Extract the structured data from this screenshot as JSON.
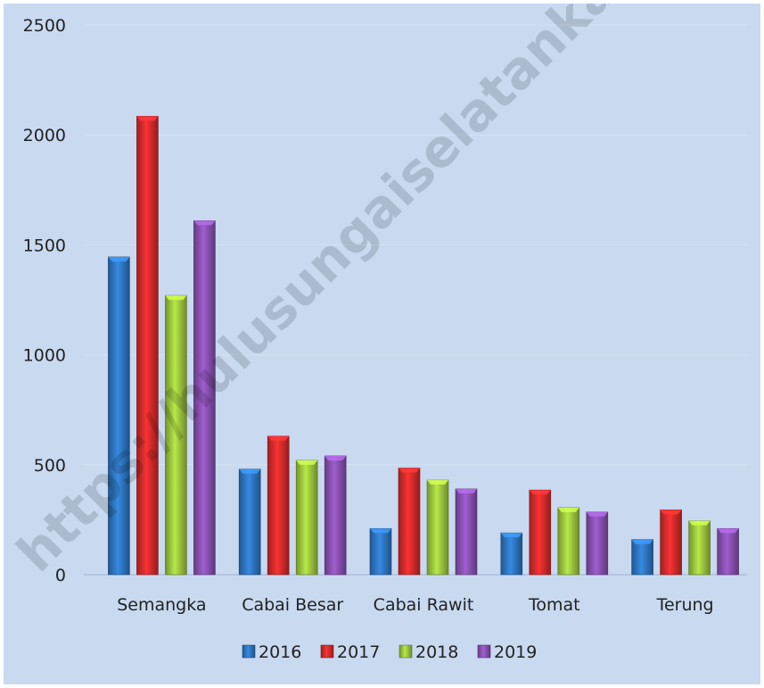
{
  "watermark": "https://hulusungaiselatankab.bps.go.id",
  "chart_data": {
    "type": "bar",
    "title": "",
    "xlabel": "",
    "ylabel": "",
    "ylim": [
      0,
      2500
    ],
    "yticks": [
      "0",
      "500",
      "1000",
      "1500",
      "2000",
      "2500"
    ],
    "grid": true,
    "legend_position": "bottom",
    "categories": [
      "Semangka",
      "Cabai Besar",
      "Cabai Rawit",
      "Tomat",
      "Terung"
    ],
    "series": [
      {
        "name": "2016",
        "color": "#2e75c0",
        "values": [
          1445,
          480,
          210,
          190,
          160
        ]
      },
      {
        "name": "2017",
        "color": "#d42a2a",
        "values": [
          2085,
          630,
          485,
          385,
          295
        ]
      },
      {
        "name": "2018",
        "color": "#9bc53d",
        "values": [
          1270,
          520,
          430,
          305,
          245
        ]
      },
      {
        "name": "2019",
        "color": "#8850b0",
        "values": [
          1610,
          540,
          390,
          285,
          210
        ]
      }
    ]
  }
}
